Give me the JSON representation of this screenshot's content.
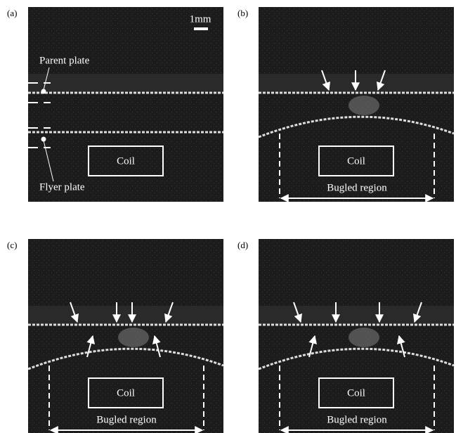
{
  "panels": [
    {
      "label": "(a)",
      "scale": "1mm",
      "parent": "Parent plate",
      "flyer": "Flyer plate",
      "coil": "Coil"
    },
    {
      "label": "(b)",
      "coil": "Coil",
      "region": "Bugled region"
    },
    {
      "label": "(c)",
      "coil": "Coil",
      "region": "Bugled region"
    },
    {
      "label": "(d)",
      "coil": "Coil",
      "region": "Bugled region"
    }
  ]
}
